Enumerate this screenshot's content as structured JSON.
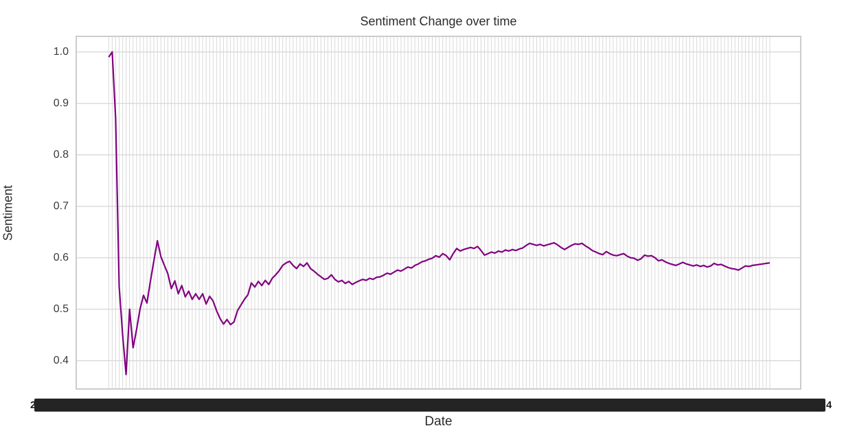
{
  "chart": {
    "title": "Sentiment Change over time",
    "x_axis": {
      "label": "Date",
      "tick_labels_overlapping": true,
      "visible_tick_fragments": {
        "left": "2",
        "right": "4"
      }
    },
    "y_axis": {
      "label": "Sentiment",
      "ticks": [
        "1.0",
        "0.9",
        "0.8",
        "0.7",
        "0.6",
        "0.5",
        "0.4"
      ]
    }
  },
  "chart_data": {
    "type": "line",
    "title": "Sentiment Change over time",
    "xlabel": "Date",
    "ylabel": "Sentiment",
    "x_description": "191 consecutive date ticks; labels overlap into an illegible black band (first char '2', last char '4')",
    "ylim": [
      0.345,
      1.032
    ],
    "yticks": [
      0.4,
      0.5,
      0.6,
      0.7,
      0.8,
      0.9,
      1.0
    ],
    "grid": true,
    "legend": false,
    "series": [
      {
        "name": "Sentiment",
        "color": "#800080",
        "values": [
          0.99,
          1.0,
          0.87,
          0.545,
          0.45,
          0.373,
          0.5,
          0.425,
          0.46,
          0.5,
          0.527,
          0.512,
          0.555,
          0.595,
          0.633,
          0.602,
          0.585,
          0.569,
          0.54,
          0.555,
          0.53,
          0.546,
          0.524,
          0.535,
          0.519,
          0.53,
          0.519,
          0.53,
          0.51,
          0.525,
          0.516,
          0.497,
          0.482,
          0.471,
          0.48,
          0.47,
          0.475,
          0.497,
          0.508,
          0.519,
          0.528,
          0.551,
          0.543,
          0.554,
          0.546,
          0.556,
          0.548,
          0.56,
          0.567,
          0.575,
          0.585,
          0.59,
          0.593,
          0.585,
          0.579,
          0.588,
          0.583,
          0.59,
          0.579,
          0.574,
          0.568,
          0.563,
          0.558,
          0.56,
          0.567,
          0.558,
          0.553,
          0.556,
          0.55,
          0.554,
          0.548,
          0.552,
          0.555,
          0.558,
          0.556,
          0.56,
          0.558,
          0.562,
          0.563,
          0.566,
          0.57,
          0.568,
          0.572,
          0.576,
          0.574,
          0.578,
          0.582,
          0.58,
          0.585,
          0.588,
          0.592,
          0.594,
          0.597,
          0.599,
          0.604,
          0.601,
          0.608,
          0.604,
          0.596,
          0.608,
          0.618,
          0.613,
          0.616,
          0.618,
          0.62,
          0.618,
          0.622,
          0.614,
          0.605,
          0.608,
          0.611,
          0.609,
          0.613,
          0.611,
          0.615,
          0.613,
          0.616,
          0.614,
          0.617,
          0.619,
          0.624,
          0.628,
          0.626,
          0.624,
          0.626,
          0.623,
          0.625,
          0.627,
          0.629,
          0.625,
          0.62,
          0.616,
          0.62,
          0.624,
          0.627,
          0.626,
          0.628,
          0.623,
          0.619,
          0.614,
          0.611,
          0.608,
          0.606,
          0.612,
          0.608,
          0.605,
          0.604,
          0.606,
          0.608,
          0.603,
          0.6,
          0.599,
          0.595,
          0.598,
          0.605,
          0.603,
          0.604,
          0.6,
          0.594,
          0.596,
          0.592,
          0.589,
          0.587,
          0.585,
          0.588,
          0.591,
          0.588,
          0.586,
          0.584,
          0.586,
          0.583,
          0.585,
          0.582,
          0.584,
          0.589,
          0.586,
          0.587,
          0.584,
          0.581,
          0.579,
          0.578,
          0.576,
          0.58,
          0.584,
          0.583,
          0.585,
          0.586,
          0.587,
          0.588,
          0.589,
          0.59
        ]
      }
    ]
  },
  "colors": {
    "line": "#800080",
    "grid": "#d9d9d9",
    "spine": "#cccccc",
    "text": "#2b2b2b",
    "tick_smear": "#242424",
    "background": "#ffffff"
  }
}
